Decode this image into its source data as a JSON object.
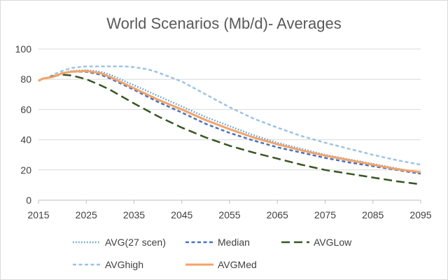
{
  "chart_data": {
    "type": "line",
    "title": "World Scenarios (Mb/d)- Averages",
    "xlabel": "",
    "ylabel": "",
    "xlim": [
      2015,
      2095
    ],
    "ylim": [
      0,
      100
    ],
    "xticks": [
      2015,
      2025,
      2035,
      2045,
      2055,
      2065,
      2075,
      2085,
      2095
    ],
    "yticks": [
      0,
      20,
      40,
      60,
      80,
      100
    ],
    "grid": "horizontal",
    "legend_position": "bottom",
    "series": [
      {
        "name": "AVG(27 scen)",
        "color": "#5b9bd5",
        "dash": "dotted",
        "x": [
          2015,
          2016,
          2017,
          2018,
          2020,
          2022,
          2025,
          2028,
          2030,
          2035,
          2040,
          2045,
          2050,
          2055,
          2060,
          2065,
          2070,
          2075,
          2080,
          2085,
          2090,
          2095
        ],
        "y": [
          79,
          80.5,
          81,
          81.5,
          84,
          85.5,
          86,
          85,
          83,
          76,
          69,
          62,
          55,
          49,
          43,
          38,
          34,
          30,
          27,
          24,
          21,
          18
        ]
      },
      {
        "name": "Median",
        "color": "#4472c4",
        "dash": "dashed",
        "x": [
          2015,
          2016,
          2017,
          2018,
          2020,
          2022,
          2025,
          2028,
          2030,
          2035,
          2040,
          2045,
          2050,
          2055,
          2060,
          2065,
          2070,
          2075,
          2080,
          2085,
          2090,
          2095
        ],
        "y": [
          79,
          80.5,
          81,
          81.5,
          84,
          85,
          85,
          83,
          80.5,
          73,
          65,
          58,
          50.5,
          44.5,
          39.5,
          35,
          31.5,
          28,
          25,
          22.5,
          20,
          17.5
        ]
      },
      {
        "name": "AVGLow",
        "color": "#375623",
        "dash": "longdash",
        "x": [
          2015,
          2016,
          2017,
          2018,
          2020,
          2022,
          2025,
          2028,
          2030,
          2035,
          2040,
          2045,
          2050,
          2055,
          2060,
          2065,
          2070,
          2075,
          2080,
          2085,
          2090,
          2095
        ],
        "y": [
          79,
          80.5,
          81,
          82,
          83,
          82.5,
          80,
          76,
          73,
          64,
          55.5,
          48,
          41.5,
          36,
          31.5,
          27.5,
          23.5,
          20,
          17.5,
          15,
          12.5,
          10.5
        ]
      },
      {
        "name": "AVGhigh",
        "color": "#9dc3e6",
        "dash": "dashed",
        "x": [
          2015,
          2016,
          2017,
          2018,
          2020,
          2022,
          2025,
          2028,
          2030,
          2033,
          2035,
          2038,
          2040,
          2045,
          2050,
          2055,
          2060,
          2065,
          2070,
          2075,
          2080,
          2085,
          2090,
          2095
        ],
        "y": [
          79,
          80.5,
          81,
          83,
          85.5,
          87.5,
          88.5,
          88.5,
          88.5,
          88.5,
          88,
          86.5,
          84.5,
          78.5,
          70,
          61.5,
          54,
          48,
          42.5,
          38,
          34,
          30,
          26.5,
          23.5
        ]
      },
      {
        "name": "AVGMed",
        "color": "#f4a266",
        "dash": "solid",
        "x": [
          2015,
          2016,
          2017,
          2018,
          2020,
          2022,
          2025,
          2028,
          2030,
          2035,
          2040,
          2045,
          2050,
          2055,
          2060,
          2065,
          2070,
          2075,
          2080,
          2085,
          2090,
          2095
        ],
        "y": [
          79,
          80.5,
          81,
          81.5,
          84,
          85,
          85.5,
          84,
          81.5,
          74,
          66.5,
          60,
          53,
          47,
          41.5,
          37,
          33,
          29.5,
          26.5,
          23.5,
          20.5,
          18.5
        ]
      }
    ]
  }
}
